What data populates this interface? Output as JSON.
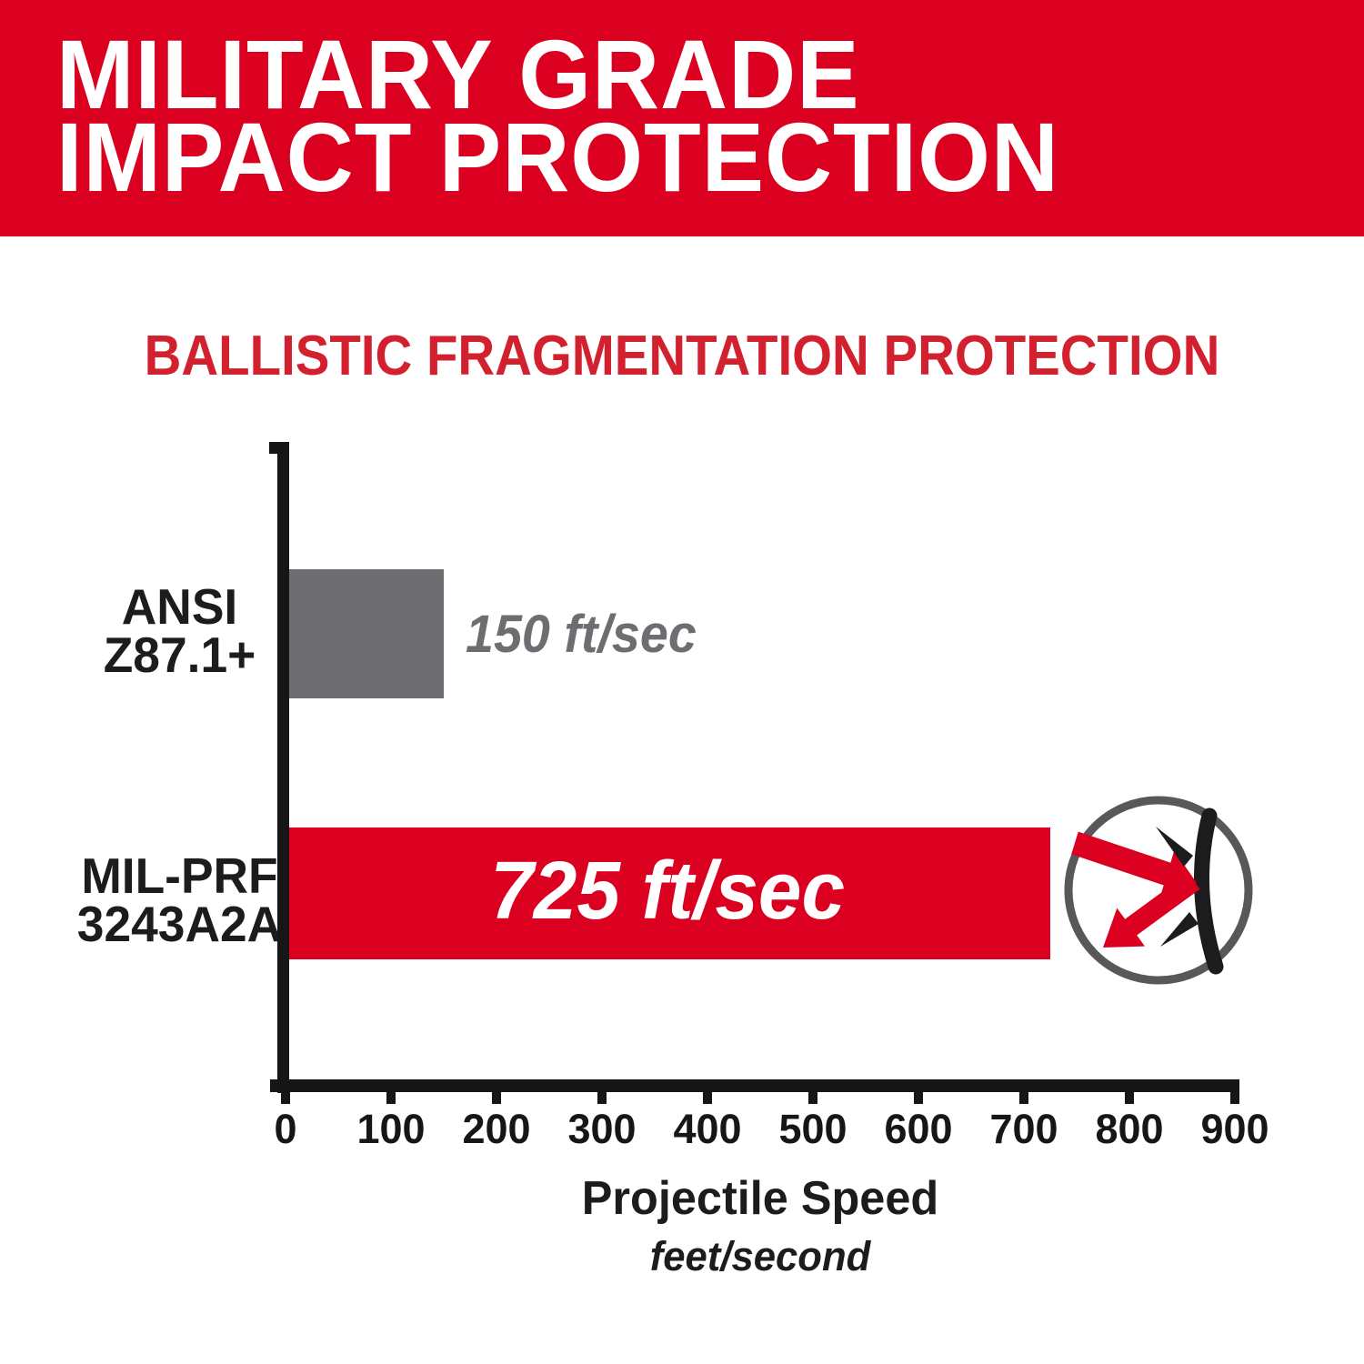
{
  "banner": {
    "line1": "MILITARY GRADE",
    "line2": "IMPACT PROTECTION",
    "bg_color": "#DB0020",
    "text_color": "#FFFFFF"
  },
  "chart": {
    "title": "BALLISTIC FRAGMENTATION PROTECTION",
    "title_color": "#D2202E",
    "bars": [
      {
        "label_lines": [
          "ANSI",
          "Z87.1+"
        ],
        "value_label": "150 ft/sec"
      },
      {
        "label_lines": [
          "MIL-PRF",
          "3243A2A"
        ],
        "value_label": "725 ft/sec"
      }
    ],
    "xlabel": "Projectile Speed",
    "xlabel_unit": "feet/second"
  },
  "chart_data": {
    "type": "bar",
    "orientation": "horizontal",
    "title": "BALLISTIC FRAGMENTATION PROTECTION",
    "categories": [
      "ANSI Z87.1+",
      "MIL-PRF 3243A2A"
    ],
    "values": [
      150,
      725
    ],
    "value_labels": [
      "150 ft/sec",
      "725 ft/sec"
    ],
    "bar_colors": [
      "#6E6D71",
      "#DB0020"
    ],
    "xlabel": "Projectile Speed",
    "xlabel_unit": "feet/second",
    "xlim": [
      0,
      900
    ],
    "x_ticks": [
      0,
      100,
      200,
      300,
      400,
      500,
      600,
      700,
      800,
      900
    ],
    "grid": false,
    "legend": false
  },
  "icon": {
    "name": "projectile-deflection-icon",
    "arrow_color": "#DB0020",
    "fragment_color": "#1C1C1E",
    "ring_color": "#58585A"
  }
}
